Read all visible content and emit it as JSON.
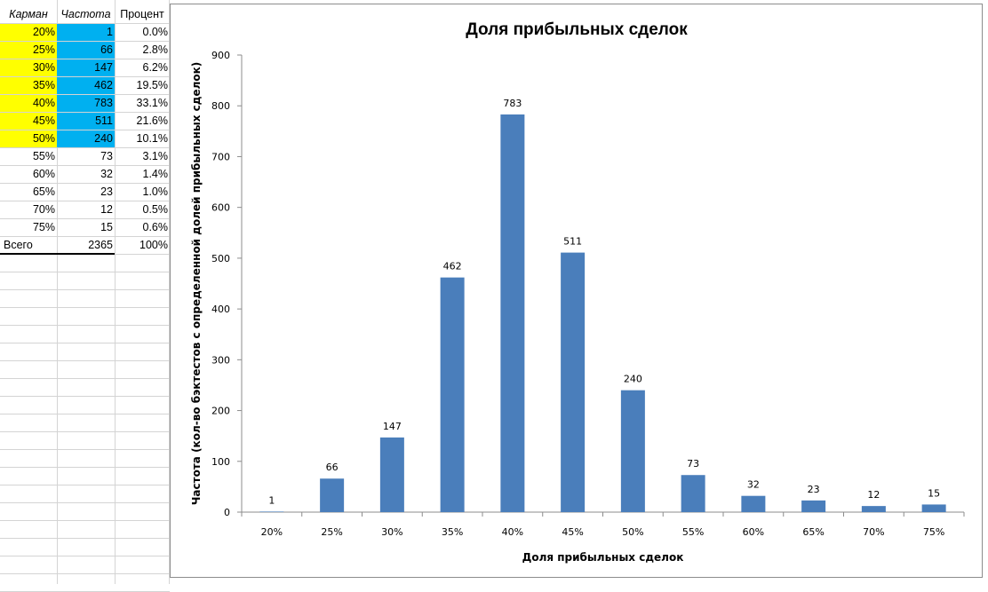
{
  "table": {
    "headers": [
      "Карман",
      "Частота",
      "Процент"
    ],
    "rows": [
      {
        "bin": "20%",
        "freq": "1",
        "pct": "0.0%"
      },
      {
        "bin": "25%",
        "freq": "66",
        "pct": "2.8%"
      },
      {
        "bin": "30%",
        "freq": "147",
        "pct": "6.2%"
      },
      {
        "bin": "35%",
        "freq": "462",
        "pct": "19.5%"
      },
      {
        "bin": "40%",
        "freq": "783",
        "pct": "33.1%"
      },
      {
        "bin": "45%",
        "freq": "511",
        "pct": "21.6%"
      },
      {
        "bin": "50%",
        "freq": "240",
        "pct": "10.1%"
      },
      {
        "bin": "55%",
        "freq": "73",
        "pct": "3.1%"
      },
      {
        "bin": "60%",
        "freq": "32",
        "pct": "1.4%"
      },
      {
        "bin": "65%",
        "freq": "23",
        "pct": "1.0%"
      },
      {
        "bin": "70%",
        "freq": "12",
        "pct": "0.5%"
      },
      {
        "bin": "75%",
        "freq": "15",
        "pct": "0.6%"
      }
    ],
    "total": {
      "label": "Всего",
      "freq": "2365",
      "pct": "100%"
    },
    "highlight_colors": {
      "bin": "#ffff00",
      "freq": "#00b0f0"
    }
  },
  "chart_data": {
    "type": "bar",
    "title": "Доля прибыльных сделок",
    "xlabel": "Доля прибыльных сделок",
    "ylabel": "Частота (кол-во бэктестов с определенной долей прибыльных сделок)",
    "categories": [
      "20%",
      "25%",
      "30%",
      "35%",
      "40%",
      "45%",
      "50%",
      "55%",
      "60%",
      "65%",
      "70%",
      "75%"
    ],
    "values": [
      1,
      66,
      147,
      462,
      783,
      511,
      240,
      73,
      32,
      23,
      12,
      15
    ],
    "ylim": [
      0,
      900
    ],
    "yticks": [
      0,
      100,
      200,
      300,
      400,
      500,
      600,
      700,
      800,
      900
    ],
    "bar_color": "#4a7ebb",
    "data_labels": true,
    "grid": false,
    "legend": "none"
  }
}
